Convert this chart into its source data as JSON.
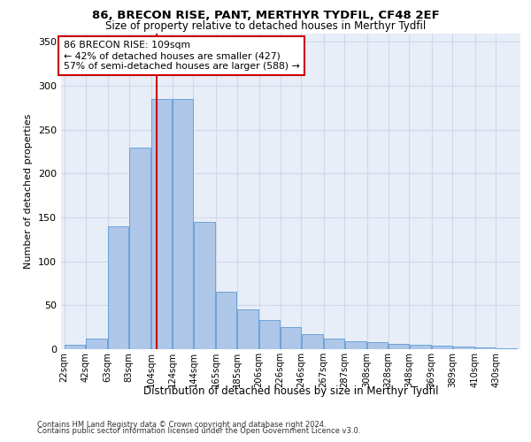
{
  "title1": "86, BRECON RISE, PANT, MERTHYR TYDFIL, CF48 2EF",
  "title2": "Size of property relative to detached houses in Merthyr Tydfil",
  "xlabel": "Distribution of detached houses by size in Merthyr Tydfil",
  "ylabel": "Number of detached properties",
  "annotation_line1": "86 BRECON RISE: 109sqm",
  "annotation_line2": "← 42% of detached houses are smaller (427)",
  "annotation_line3": "57% of semi-detached houses are larger (588) →",
  "categories": [
    "22sqm",
    "42sqm",
    "63sqm",
    "83sqm",
    "104sqm",
    "124sqm",
    "144sqm",
    "165sqm",
    "185sqm",
    "206sqm",
    "226sqm",
    "246sqm",
    "267sqm",
    "287sqm",
    "308sqm",
    "328sqm",
    "348sqm",
    "369sqm",
    "389sqm",
    "410sqm",
    "430sqm"
  ],
  "bar_left_edges": [
    22,
    42,
    63,
    83,
    104,
    124,
    144,
    165,
    185,
    206,
    226,
    246,
    267,
    287,
    308,
    328,
    348,
    369,
    389,
    410,
    430
  ],
  "bar_widths": [
    20,
    21,
    20,
    21,
    20,
    20,
    21,
    20,
    21,
    20,
    20,
    21,
    20,
    21,
    20,
    20,
    21,
    20,
    21,
    20,
    20
  ],
  "values": [
    5,
    12,
    140,
    230,
    285,
    285,
    145,
    65,
    45,
    33,
    25,
    17,
    12,
    9,
    8,
    6,
    5,
    4,
    3,
    2,
    1
  ],
  "bar_color": "#aec6e8",
  "bar_edge_color": "#5b9bd5",
  "vline_color": "#cc0000",
  "vline_x": 109,
  "grid_color": "#d0d8e8",
  "background_color": "#e8eef8",
  "footer1": "Contains HM Land Registry data © Crown copyright and database right 2024.",
  "footer2": "Contains public sector information licensed under the Open Government Licence v3.0.",
  "ylim": [
    0,
    360
  ],
  "yticks": [
    0,
    50,
    100,
    150,
    200,
    250,
    300,
    350
  ]
}
